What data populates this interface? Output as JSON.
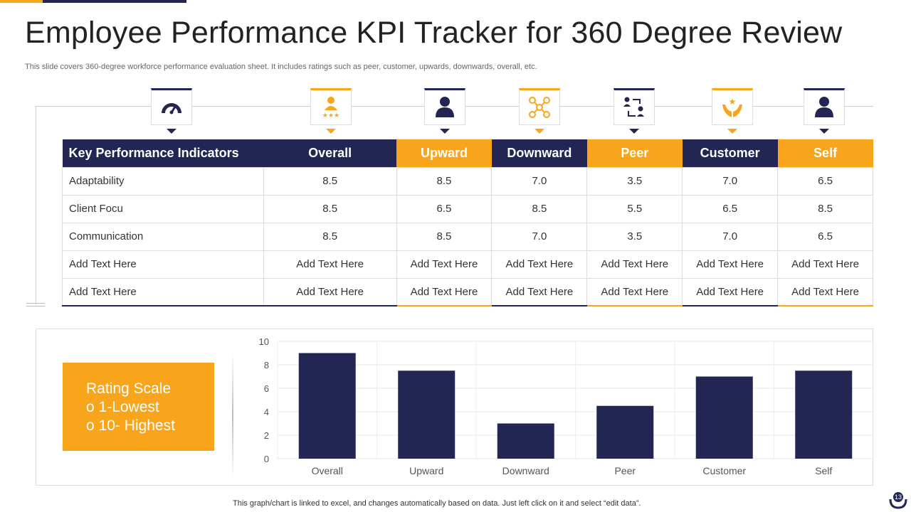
{
  "title": "Employee Performance KPI Tracker for 360 Degree Review",
  "subtitle": "This slide covers 360-degree workforce performance evaluation sheet. It includes ratings such as peer, customer, upwards, downwards, overall, etc.",
  "icons": [
    "speedometer-icon",
    "rated-person-icon",
    "person-icon",
    "network-icon",
    "exchange-icon",
    "hands-stars-icon",
    "person-icon"
  ],
  "table": {
    "headers": [
      "Key Performance Indicators",
      "Overall",
      "Upward",
      "Downward",
      "Peer",
      "Customer",
      "Self"
    ],
    "rows": [
      [
        "Adaptability",
        "8.5",
        "8.5",
        "7.0",
        "3.5",
        "7.0",
        "6.5"
      ],
      [
        "Client Focu",
        "8.5",
        "6.5",
        "8.5",
        "5.5",
        "6.5",
        "8.5"
      ],
      [
        "Communication",
        "8.5",
        "8.5",
        "7.0",
        "3.5",
        "7.0",
        "6.5"
      ],
      [
        "Add Text Here",
        "Add Text Here",
        "Add Text Here",
        "Add Text Here",
        "Add Text Here",
        "Add Text Here",
        "Add Text Here"
      ],
      [
        "Add Text Here",
        "Add Text Here",
        "Add Text Here",
        "Add Text Here",
        "Add Text Here",
        "Add Text Here",
        "Add Text Here"
      ]
    ]
  },
  "rating": {
    "title": "Rating Scale",
    "items": [
      "1-Lowest",
      "10- Highest"
    ],
    "bullet": "o"
  },
  "chart_data": {
    "type": "bar",
    "categories": [
      "Overall",
      "Upward",
      "Downward",
      "Peer",
      "Customer",
      "Self"
    ],
    "values": [
      9,
      7.5,
      3,
      4.5,
      7,
      7.5
    ],
    "yticks": [
      "0",
      "2",
      "4",
      "6",
      "8",
      "10"
    ],
    "ylim": [
      0,
      10
    ],
    "grid": true,
    "color": "#232653"
  },
  "note": "This graph/chart is linked to excel, and changes automatically based on data. Just left click on it and select “edit data”.",
  "page_number": "13",
  "colors": {
    "navy": "#232653",
    "orange": "#f8a51b"
  }
}
